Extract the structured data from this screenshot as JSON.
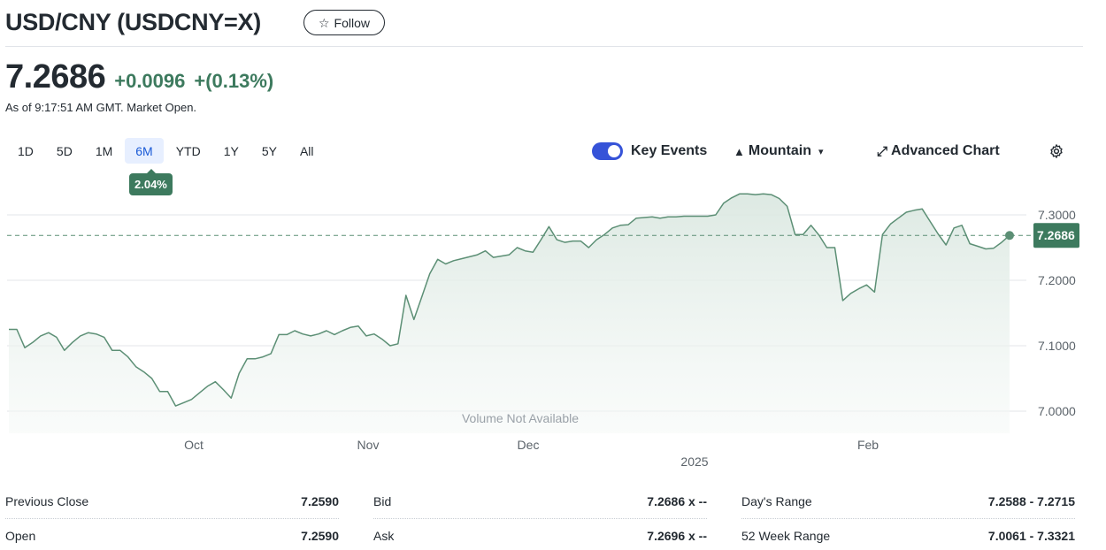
{
  "header": {
    "title": "USD/CNY (USDCNY=X)",
    "follow_label": "Follow",
    "follow_icon": "star-outline-icon"
  },
  "quote": {
    "price": "7.2686",
    "change": "+0.0096",
    "change_pct": "+(0.13%)",
    "as_of": "As of 9:17:51 AM GMT. Market Open."
  },
  "ranges": [
    "1D",
    "5D",
    "1M",
    "6M",
    "YTD",
    "1Y",
    "5Y",
    "All"
  ],
  "active_range": "6M",
  "range_change_badge": "2.04%",
  "toolbar": {
    "key_events_label": "Key Events",
    "key_events_on": true,
    "chart_type_label": "Mountain",
    "advanced_chart_label": "Advanced Chart",
    "settings_icon": "gear-icon"
  },
  "colors": {
    "positive": "#3d7a5e",
    "accent": "#3653d8",
    "line": "#5c8f75"
  },
  "chart_data": {
    "type": "area",
    "ylim": [
      6.98,
      7.34
    ],
    "yticks": [
      "7.3000",
      "7.2000",
      "7.1000",
      "7.0000"
    ],
    "ytick_values": [
      7.3,
      7.2,
      7.1,
      7.0
    ],
    "xticks": [
      "Oct",
      "Nov",
      "Dec",
      "Feb"
    ],
    "year_label": "2025",
    "last_price_label": "7.2686",
    "last_price": 7.2686,
    "no_volume_label": "Volume Not Available",
    "values": [
      7.125,
      7.125,
      7.097,
      7.105,
      7.115,
      7.12,
      7.113,
      7.093,
      7.105,
      7.115,
      7.12,
      7.118,
      7.113,
      7.093,
      7.093,
      7.083,
      7.068,
      7.06,
      7.05,
      7.03,
      7.03,
      7.008,
      7.013,
      7.018,
      7.028,
      7.038,
      7.045,
      7.033,
      7.02,
      7.058,
      7.08,
      7.08,
      7.083,
      7.088,
      7.117,
      7.117,
      7.123,
      7.118,
      7.115,
      7.118,
      7.123,
      7.117,
      7.123,
      7.128,
      7.13,
      7.115,
      7.118,
      7.11,
      7.1,
      7.103,
      7.177,
      7.14,
      7.175,
      7.21,
      7.232,
      7.225,
      7.23,
      7.233,
      7.236,
      7.239,
      7.245,
      7.235,
      7.237,
      7.239,
      7.25,
      7.245,
      7.243,
      7.262,
      7.282,
      7.262,
      7.258,
      7.26,
      7.26,
      7.25,
      7.262,
      7.27,
      7.28,
      7.284,
      7.285,
      7.295,
      7.296,
      7.297,
      7.295,
      7.297,
      7.297,
      7.298,
      7.298,
      7.298,
      7.298,
      7.3,
      7.318,
      7.326,
      7.332,
      7.332,
      7.331,
      7.332,
      7.331,
      7.325,
      7.313,
      7.27,
      7.27,
      7.284,
      7.269,
      7.25,
      7.25,
      7.169,
      7.18,
      7.187,
      7.193,
      7.182,
      7.27,
      7.286,
      7.295,
      7.304,
      7.307,
      7.309,
      7.29,
      7.271,
      7.254,
      7.28,
      7.284,
      7.256,
      7.252,
      7.248,
      7.249,
      7.258,
      7.2686
    ]
  },
  "stats": {
    "col1": [
      {
        "label": "Previous Close",
        "value": "7.2590"
      },
      {
        "label": "Open",
        "value": "7.2590"
      }
    ],
    "col2": [
      {
        "label": "Bid",
        "value": "7.2686 x --"
      },
      {
        "label": "Ask",
        "value": "7.2696 x --"
      }
    ],
    "col3": [
      {
        "label": "Day's Range",
        "value": "7.2588 - 7.2715"
      },
      {
        "label": "52 Week Range",
        "value": "7.0061 - 7.3321"
      }
    ]
  }
}
